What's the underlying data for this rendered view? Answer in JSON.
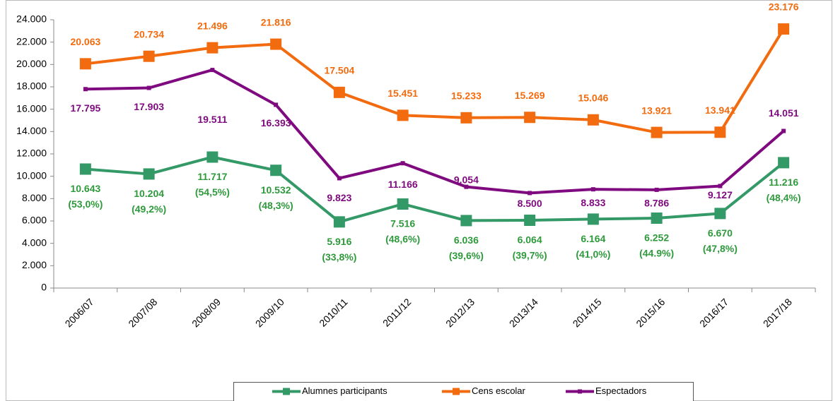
{
  "chart_data": {
    "type": "line",
    "categories": [
      "2006/07",
      "2007/08",
      "2008/09",
      "2009/10",
      "2010/11",
      "2011/12",
      "2012/13",
      "2013/14",
      "2014/15",
      "2015/16",
      "2016/17",
      "2017/18"
    ],
    "series": [
      {
        "name": "Alumnes participants",
        "color": "#339966",
        "label_color": "#2e9a3c",
        "marker": "big",
        "values": [
          10643,
          10204,
          11717,
          10532,
          5916,
          7516,
          6036,
          6064,
          6164,
          6252,
          6670,
          11216
        ],
        "value_labels": [
          "10.643",
          "10.204",
          "11.717",
          "10.532",
          "5.916",
          "7.516",
          "6.036",
          "6.064",
          "6.164",
          "6.252",
          "6.670",
          "11.216"
        ],
        "share_labels": [
          "(53,0%)",
          "(49,2%)",
          "(54,5%)",
          "(48,3%)",
          "(33,8%)",
          "(48,6%)",
          "(39,6%)",
          "(39,7%)",
          "(41,0%)",
          "(44.9%)",
          "(47,8%)",
          "(48,4%)"
        ]
      },
      {
        "name": "Cens escolar",
        "color": "#f26b0f",
        "label_color": "#f26b0f",
        "marker": "big",
        "values": [
          20063,
          20734,
          21496,
          21816,
          17504,
          15451,
          15233,
          15269,
          15046,
          13921,
          13941,
          23176
        ],
        "value_labels": [
          "20.063",
          "20.734",
          "21.496",
          "21.816",
          "17.504",
          "15.451",
          "15.233",
          "15.269",
          "15.046",
          "13.921",
          "13.941",
          "23.176"
        ]
      },
      {
        "name": "Espectadors",
        "color": "#7f0a7f",
        "label_color": "#7f0a7f",
        "marker": "small",
        "values": [
          17795,
          17903,
          19511,
          16393,
          9823,
          11166,
          9054,
          8500,
          8833,
          8786,
          9127,
          14051
        ],
        "value_labels": [
          "17.795",
          "17.903",
          "19.511",
          "16.393",
          "9.823",
          "11.166",
          "9.054",
          "8.500",
          "8.833",
          "8.786",
          "9.127",
          "14.051"
        ]
      }
    ],
    "ylim": [
      0,
      24000
    ],
    "yticks": [
      0,
      {
        "value": 2000,
        "label": "2.000"
      },
      {
        "value": 4000,
        "label": "4.000"
      },
      {
        "value": 6000,
        "label": "6.000"
      },
      {
        "value": 8000,
        "label": "8.000"
      },
      {
        "value": 10000,
        "label": "10.000"
      },
      {
        "value": 12000,
        "label": "12.000"
      },
      {
        "value": 14000,
        "label": "14.000"
      },
      {
        "value": 16000,
        "label": "16.000"
      },
      {
        "value": 18000,
        "label": "18.000"
      },
      {
        "value": 20000,
        "label": "20.000"
      },
      {
        "value": 22000,
        "label": "22.000"
      },
      {
        "value": 24000,
        "label": "24.000"
      }
    ],
    "grid": false,
    "legend": "bottom"
  }
}
